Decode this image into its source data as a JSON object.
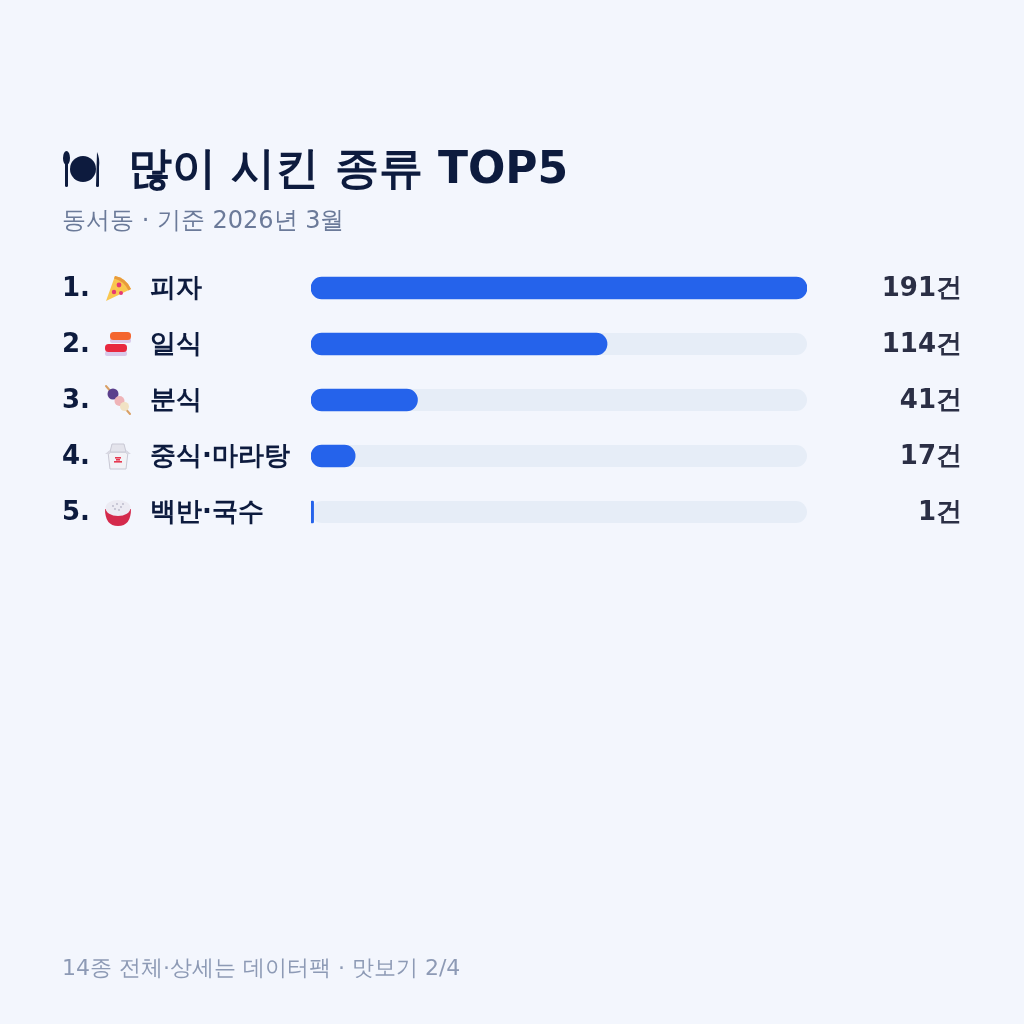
{
  "chart_data": {
    "type": "bar",
    "orientation": "horizontal",
    "title": "많이 시킨 종류 TOP5",
    "subtitle": "동서동 · 기준 2026년 3월",
    "categories": [
      "1. 피자",
      "2. 일식",
      "3. 분식",
      "4. 중식·마라탕",
      "5. 백반·국수"
    ],
    "values": [
      191,
      114,
      41,
      17,
      1
    ],
    "color": "#2563eb",
    "value_labels": [
      "191건",
      "114건",
      "41건",
      "17건",
      "1건"
    ],
    "xlim": [
      0,
      191
    ],
    "tick_labels": "y",
    "annotations": [
      "14종 전체·상세는 데이터팩 · 맛보기 2/4"
    ]
  }
}
